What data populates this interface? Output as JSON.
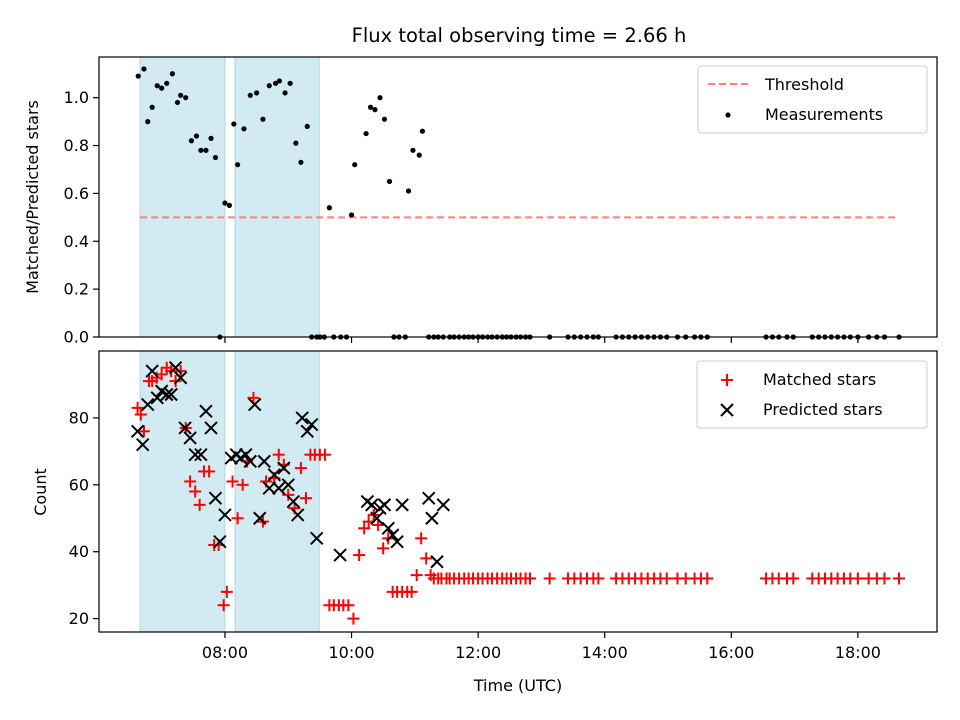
{
  "figure": {
    "title": "Flux total observing time = 2.66 h",
    "colors": {
      "band": "#add8e6",
      "threshold": "#ff7f7f",
      "matched": "#ff0000",
      "predicted": "#000000",
      "measurement": "#000000"
    }
  },
  "chart_data": [
    {
      "type": "scatter",
      "ylabel": "Matched/Predicted stars",
      "ylim": [
        0,
        1.17
      ],
      "yticks": [
        "0.0",
        "0.2",
        "0.4",
        "0.6",
        "0.8",
        "1.0"
      ],
      "ytick_values": [
        0,
        0.2,
        0.4,
        0.6,
        0.8,
        1.0
      ],
      "xlim": [
        6.01,
        19.25
      ],
      "shaded_intervals_hours": [
        [
          6.66,
          8.0
        ],
        [
          8.16,
          9.49
        ]
      ],
      "legend": {
        "position": "top-right",
        "entries": [
          "Threshold",
          "Measurements"
        ]
      },
      "threshold": {
        "name": "Threshold",
        "y": 0.5,
        "x_range_hours": [
          6.66,
          18.6
        ]
      },
      "measurements": {
        "name": "Measurements",
        "x_hours": [
          6.63,
          6.72,
          6.78,
          6.85,
          6.93,
          7.0,
          7.08,
          7.17,
          7.25,
          7.3,
          7.38,
          7.47,
          7.55,
          7.62,
          7.7,
          7.78,
          7.85,
          7.92,
          8.0,
          8.07,
          8.14,
          8.2,
          8.3,
          8.4,
          8.5,
          8.6,
          8.7,
          8.8,
          8.86,
          8.95,
          9.03,
          9.12,
          9.2,
          9.3,
          9.37,
          9.45,
          9.5,
          9.57,
          9.65,
          9.72,
          9.83,
          9.92,
          10.0,
          10.05,
          10.23,
          10.3,
          10.37,
          10.45,
          10.52,
          10.6,
          10.67,
          10.75,
          10.85,
          10.9,
          10.97,
          11.07,
          11.12,
          11.22,
          11.3,
          11.37,
          11.45,
          11.55,
          11.62,
          11.7,
          11.78,
          11.85,
          11.92,
          12.0,
          12.07,
          12.15,
          12.22,
          12.3,
          12.38,
          12.45,
          12.52,
          12.6,
          12.67,
          12.75,
          12.82,
          13.13,
          13.42,
          13.52,
          13.62,
          13.72,
          13.82,
          13.9,
          14.18,
          14.28,
          14.38,
          14.48,
          14.58,
          14.68,
          14.78,
          14.88,
          14.98,
          15.15,
          15.28,
          15.42,
          15.52,
          15.62,
          16.55,
          16.65,
          16.75,
          16.88,
          16.98,
          17.28,
          17.38,
          17.48,
          17.58,
          17.68,
          17.78,
          17.88,
          18.0,
          18.17,
          18.3,
          18.42,
          18.65
        ],
        "y": [
          1.09,
          1.12,
          0.9,
          0.96,
          1.05,
          1.04,
          1.06,
          1.1,
          0.98,
          1.01,
          1.0,
          0.82,
          0.84,
          0.78,
          0.78,
          0.83,
          0.75,
          0.0,
          0.56,
          0.55,
          0.89,
          0.72,
          0.87,
          1.01,
          1.02,
          0.91,
          1.05,
          1.06,
          1.07,
          1.02,
          1.06,
          0.81,
          0.73,
          0.88,
          0.0,
          0.0,
          0.0,
          0.0,
          0.54,
          0.0,
          0.0,
          0.0,
          0.51,
          0.72,
          0.85,
          0.96,
          0.95,
          1.0,
          0.91,
          0.65,
          0.0,
          0.0,
          0.0,
          0.61,
          0.78,
          0.76,
          0.86,
          0.0,
          0.0,
          0.0,
          0.0,
          0.0,
          0.0,
          0.0,
          0.0,
          0.0,
          0.0,
          0.0,
          0.0,
          0.0,
          0.0,
          0.0,
          0.0,
          0.0,
          0.0,
          0.0,
          0.0,
          0.0,
          0.0,
          0.0,
          0.0,
          0.0,
          0.0,
          0.0,
          0.0,
          0.0,
          0.0,
          0.0,
          0.0,
          0.0,
          0.0,
          0.0,
          0.0,
          0.0,
          0.0,
          0.0,
          0.0,
          0.0,
          0.0,
          0.0,
          0.0,
          0.0,
          0.0,
          0.0,
          0.0,
          0.0,
          0.0,
          0.0,
          0.0,
          0.0,
          0.0,
          0.0,
          0.0,
          0.0,
          0.0,
          0.0,
          0.0
        ]
      }
    },
    {
      "type": "scatter",
      "ylabel": "Count",
      "xlabel": "Time (UTC)",
      "ylim": [
        16,
        100
      ],
      "yticks": [
        "20",
        "40",
        "60",
        "80"
      ],
      "ytick_values": [
        20,
        40,
        60,
        80
      ],
      "xlim": [
        6.01,
        19.25
      ],
      "xticks": [
        "08:00",
        "10:00",
        "12:00",
        "14:00",
        "16:00",
        "18:00"
      ],
      "xtick_values": [
        8,
        10,
        12,
        14,
        16,
        18
      ],
      "shaded_intervals_hours": [
        [
          6.66,
          8.0
        ],
        [
          8.16,
          9.49
        ]
      ],
      "legend": {
        "position": "top-right",
        "entries": [
          "Matched stars",
          "Predicted stars"
        ]
      },
      "series": [
        {
          "name": "Matched stars",
          "marker": "+",
          "x_hours": [
            6.62,
            6.67,
            6.72,
            6.8,
            6.85,
            6.92,
            7.0,
            7.08,
            7.15,
            7.22,
            7.3,
            7.38,
            7.45,
            7.53,
            7.6,
            7.67,
            7.75,
            7.83,
            7.9,
            7.98,
            8.03,
            8.12,
            8.2,
            8.28,
            8.35,
            8.45,
            8.6,
            8.65,
            8.78,
            8.85,
            8.93,
            9.0,
            9.1,
            9.2,
            9.28,
            9.35,
            9.42,
            9.5,
            9.58,
            9.65,
            9.72,
            9.8,
            9.87,
            9.95,
            10.03,
            10.12,
            10.2,
            10.27,
            10.35,
            10.42,
            10.5,
            10.58,
            10.65,
            10.72,
            10.8,
            10.88,
            10.95,
            11.03,
            11.1,
            11.18,
            11.25,
            11.3,
            11.37,
            11.42,
            11.5,
            11.55,
            11.62,
            11.7,
            11.78,
            11.85,
            11.92,
            12.0,
            12.07,
            12.15,
            12.22,
            12.3,
            12.38,
            12.45,
            12.52,
            12.6,
            12.67,
            12.75,
            12.82,
            13.13,
            13.42,
            13.52,
            13.62,
            13.72,
            13.82,
            13.9,
            14.18,
            14.28,
            14.38,
            14.48,
            14.58,
            14.68,
            14.78,
            14.88,
            14.98,
            15.15,
            15.28,
            15.42,
            15.52,
            15.62,
            16.55,
            16.65,
            16.75,
            16.88,
            16.98,
            17.28,
            17.38,
            17.48,
            17.58,
            17.68,
            17.78,
            17.88,
            18.0,
            18.17,
            18.3,
            18.42,
            18.65
          ],
          "y": [
            83,
            81,
            76,
            91,
            91,
            92,
            93,
            95,
            94,
            91,
            94,
            77,
            61,
            58,
            54,
            64,
            64,
            42,
            42,
            24,
            28,
            61,
            50,
            60,
            67,
            86,
            49,
            61,
            62,
            69,
            66,
            57,
            53,
            65,
            56,
            69,
            69,
            69,
            69,
            24,
            24,
            24,
            24,
            24,
            20,
            39,
            47,
            49,
            51,
            48,
            41,
            44,
            28,
            28,
            28,
            28,
            28,
            33,
            44,
            38,
            33,
            32,
            32,
            32,
            32,
            32,
            32,
            32,
            32,
            32,
            32,
            32,
            32,
            32,
            32,
            32,
            32,
            32,
            32,
            32,
            32,
            32,
            32,
            32,
            32,
            32,
            32,
            32,
            32,
            32,
            32,
            32,
            32,
            32,
            32,
            32,
            32,
            32,
            32,
            32,
            32,
            32,
            32,
            32,
            32,
            32,
            32,
            32,
            32,
            32,
            32,
            32,
            32,
            32,
            32,
            32,
            32,
            32,
            32,
            32,
            32
          ]
        },
        {
          "name": "Predicted stars",
          "marker": "x",
          "x_hours": [
            6.62,
            6.7,
            6.78,
            6.85,
            6.93,
            7.0,
            7.08,
            7.15,
            7.22,
            7.3,
            7.37,
            7.45,
            7.53,
            7.62,
            7.7,
            7.78,
            7.85,
            7.92,
            8.0,
            8.1,
            8.18,
            8.25,
            8.33,
            8.4,
            8.47,
            8.55,
            8.62,
            8.7,
            8.78,
            8.85,
            8.93,
            9.0,
            9.08,
            9.15,
            9.22,
            9.3,
            9.37,
            9.45,
            9.82,
            10.25,
            10.32,
            10.4,
            10.45,
            10.52,
            10.58,
            10.65,
            10.72,
            10.8,
            11.22,
            11.27,
            11.35,
            11.45
          ],
          "y": [
            76,
            72,
            84,
            94,
            86,
            88,
            87,
            87,
            95,
            92,
            77,
            74,
            69,
            69,
            82,
            77,
            56,
            43,
            51,
            68,
            69,
            68,
            69,
            67,
            84,
            50,
            67,
            59,
            63,
            59,
            65,
            60,
            55,
            51,
            80,
            76,
            78,
            44,
            39,
            55,
            54,
            50,
            53,
            54,
            47,
            45,
            43,
            54,
            56,
            50,
            37,
            54
          ]
        }
      ]
    }
  ]
}
